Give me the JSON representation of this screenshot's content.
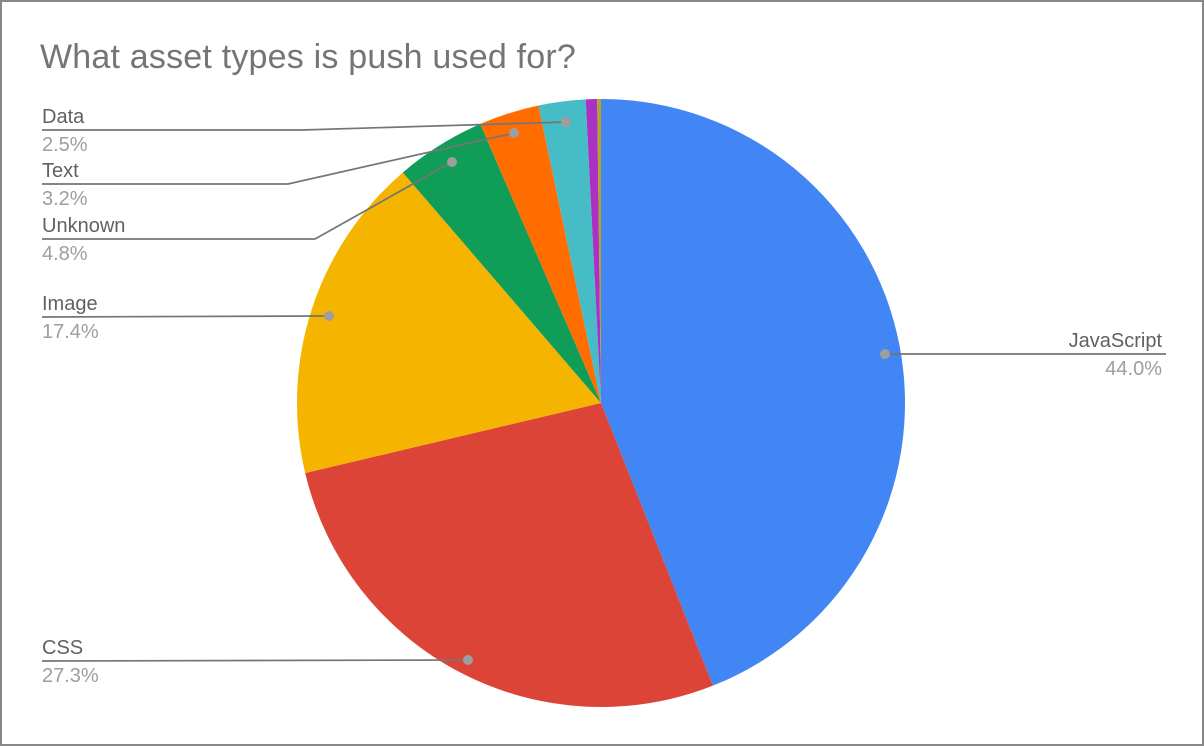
{
  "chart_data": {
    "type": "pie",
    "title": "What asset types is push used for?",
    "legend_position": "none",
    "labels_style": "callout",
    "start_angle_deg": 0,
    "direction": "clockwise",
    "slices": [
      {
        "label": "JavaScript",
        "value": 44.0,
        "pct_label": "44.0%",
        "color": "#4285F4"
      },
      {
        "label": "CSS",
        "value": 27.3,
        "pct_label": "27.3%",
        "color": "#DB4437"
      },
      {
        "label": "Image",
        "value": 17.4,
        "pct_label": "17.4%",
        "color": "#F4B400"
      },
      {
        "label": "Unknown",
        "value": 4.8,
        "pct_label": "4.8%",
        "color": "#0F9D58"
      },
      {
        "label": "Text",
        "value": 3.2,
        "pct_label": "3.2%",
        "color": "#FF6D00"
      },
      {
        "label": "Data",
        "value": 2.5,
        "pct_label": "2.5%",
        "color": "#46BDC6"
      },
      {
        "label": "",
        "value": 0.6,
        "pct_label": "",
        "color": "#AB30C4"
      },
      {
        "label": "",
        "value": 0.2,
        "pct_label": "",
        "color": "#B2A428"
      }
    ],
    "colors": {
      "title_text": "#757575",
      "label_name_text": "#616161",
      "label_pct_text": "#9e9e9e",
      "callout_line": "#757575",
      "callout_dot": "#9e9e9e",
      "background": "#ffffff",
      "frame_border": "#878787"
    }
  }
}
